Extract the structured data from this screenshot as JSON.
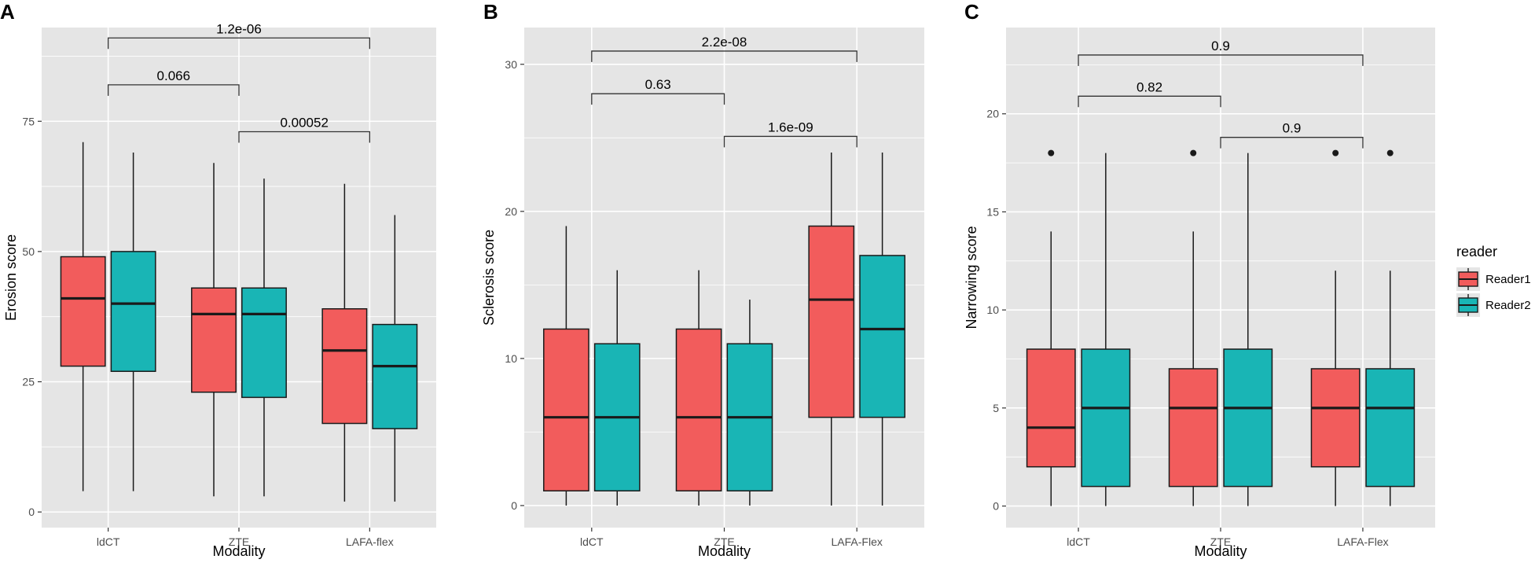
{
  "legend": {
    "title": "reader",
    "entries": [
      {
        "name": "Reader1",
        "color": "#F25C5C"
      },
      {
        "name": "Reader2",
        "color": "#19B5B5"
      }
    ]
  },
  "chart_data": [
    {
      "panel": "A",
      "type": "boxplot",
      "xlabel": "Modality",
      "ylabel": "Erosion score",
      "ylim": [
        -3,
        93
      ],
      "yticks": [
        "0",
        "25",
        "50",
        "75"
      ],
      "categories": [
        "ldCT",
        "ZTE",
        "LAFA-flex"
      ],
      "series": [
        {
          "name": "Reader1",
          "boxes": [
            {
              "min": 4,
              "q1": 28,
              "median": 41,
              "q3": 49,
              "max": 71,
              "outliers": []
            },
            {
              "min": 3,
              "q1": 23,
              "median": 38,
              "q3": 43,
              "max": 67,
              "outliers": []
            },
            {
              "min": 2,
              "q1": 17,
              "median": 31,
              "q3": 39,
              "max": 63,
              "outliers": []
            }
          ]
        },
        {
          "name": "Reader2",
          "boxes": [
            {
              "min": 4,
              "q1": 27,
              "median": 40,
              "q3": 50,
              "max": 69,
              "outliers": []
            },
            {
              "min": 3,
              "q1": 22,
              "median": 38,
              "q3": 43,
              "max": 64,
              "outliers": []
            },
            {
              "min": 2,
              "q1": 16,
              "median": 28,
              "q3": 36,
              "max": 57,
              "outliers": []
            }
          ]
        }
      ],
      "comparisons": [
        {
          "from": 0,
          "to": 2,
          "label": "1.2e-06",
          "y": 91
        },
        {
          "from": 0,
          "to": 1,
          "label": "0.066",
          "y": 82
        },
        {
          "from": 1,
          "to": 2,
          "label": "0.00052",
          "y": 73
        }
      ]
    },
    {
      "panel": "B",
      "type": "boxplot",
      "xlabel": "Modality",
      "ylabel": "Sclerosis score",
      "ylim": [
        -1.5,
        32.5
      ],
      "yticks": [
        "0",
        "10",
        "20",
        "30"
      ],
      "categories": [
        "ldCT",
        "ZTE",
        "LAFA-Flex"
      ],
      "series": [
        {
          "name": "Reader1",
          "boxes": [
            {
              "min": 0,
              "q1": 1,
              "median": 6,
              "q3": 12,
              "max": 19,
              "outliers": []
            },
            {
              "min": 0,
              "q1": 1,
              "median": 6,
              "q3": 12,
              "max": 16,
              "outliers": []
            },
            {
              "min": 0,
              "q1": 6,
              "median": 14,
              "q3": 19,
              "max": 24,
              "outliers": []
            }
          ]
        },
        {
          "name": "Reader2",
          "boxes": [
            {
              "min": 0,
              "q1": 1,
              "median": 6,
              "q3": 11,
              "max": 16,
              "outliers": []
            },
            {
              "min": 0,
              "q1": 1,
              "median": 6,
              "q3": 11,
              "max": 14,
              "outliers": []
            },
            {
              "min": 0,
              "q1": 6,
              "median": 12,
              "q3": 17,
              "max": 24,
              "outliers": []
            }
          ]
        }
      ],
      "comparisons": [
        {
          "from": 0,
          "to": 2,
          "label": "2.2e-08",
          "y": 30.9
        },
        {
          "from": 0,
          "to": 1,
          "label": "0.63",
          "y": 28
        },
        {
          "from": 1,
          "to": 2,
          "label": "1.6e-09",
          "y": 25.1
        }
      ]
    },
    {
      "panel": "C",
      "type": "boxplot",
      "xlabel": "Modality",
      "ylabel": "Narrowing score",
      "ylim": [
        -1.1,
        24.4
      ],
      "yticks": [
        "0",
        "5",
        "10",
        "15",
        "20"
      ],
      "categories": [
        "ldCT",
        "ZTE",
        "LAFA-Flex"
      ],
      "series": [
        {
          "name": "Reader1",
          "boxes": [
            {
              "min": 0,
              "q1": 2,
              "median": 4,
              "q3": 8,
              "max": 14,
              "outliers": [
                18
              ]
            },
            {
              "min": 0,
              "q1": 1,
              "median": 5,
              "q3": 7,
              "max": 14,
              "outliers": [
                18
              ]
            },
            {
              "min": 0,
              "q1": 2,
              "median": 5,
              "q3": 7,
              "max": 12,
              "outliers": [
                18
              ]
            }
          ]
        },
        {
          "name": "Reader2",
          "boxes": [
            {
              "min": 0,
              "q1": 1,
              "median": 5,
              "q3": 8,
              "max": 18,
              "outliers": []
            },
            {
              "min": 0,
              "q1": 1,
              "median": 5,
              "q3": 8,
              "max": 18,
              "outliers": []
            },
            {
              "min": 0,
              "q1": 1,
              "median": 5,
              "q3": 7,
              "max": 12,
              "outliers": [
                18
              ]
            }
          ]
        }
      ],
      "comparisons": [
        {
          "from": 0,
          "to": 2,
          "label": "0.9",
          "y": 23
        },
        {
          "from": 0,
          "to": 1,
          "label": "0.82",
          "y": 20.9
        },
        {
          "from": 1,
          "to": 2,
          "label": "0.9",
          "y": 18.8
        }
      ]
    }
  ]
}
